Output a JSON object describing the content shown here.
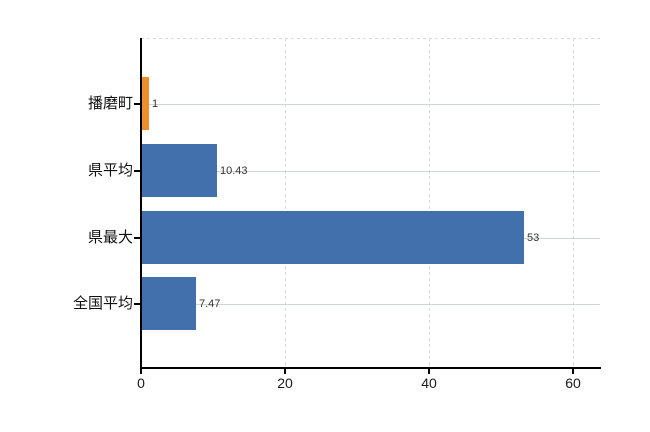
{
  "chart_data": {
    "type": "bar",
    "orientation": "horizontal",
    "title": "",
    "xlabel": "",
    "ylabel": "",
    "categories": [
      "播磨町",
      "県平均",
      "県最大",
      "全国平均"
    ],
    "values": [
      1,
      10.43,
      53,
      7.47
    ],
    "value_labels": [
      "1",
      "10.43",
      "53",
      "7.47"
    ],
    "bar_colors": [
      "#ee8f2c",
      "#4170ac",
      "#4170ac",
      "#4170ac"
    ],
    "x_ticks": [
      0,
      20,
      40,
      60
    ],
    "x_tick_labels": [
      "0",
      "20",
      "40",
      "60"
    ],
    "xlim": [
      0,
      63.75
    ],
    "grid": "dashed vertical gridlines at x ticks, solid light horizontal line at each category center, dashed top border",
    "legend": "none"
  },
  "colors": {
    "background": "#ffffff",
    "bar_blue": "#4170ac",
    "bar_orange": "#ee8f2c",
    "axis": "#000000",
    "category_line": "#cfd6cf",
    "dashed_grid": "#d9d9df",
    "value_label": "#333333",
    "tick_label": "#1a1a1a"
  }
}
